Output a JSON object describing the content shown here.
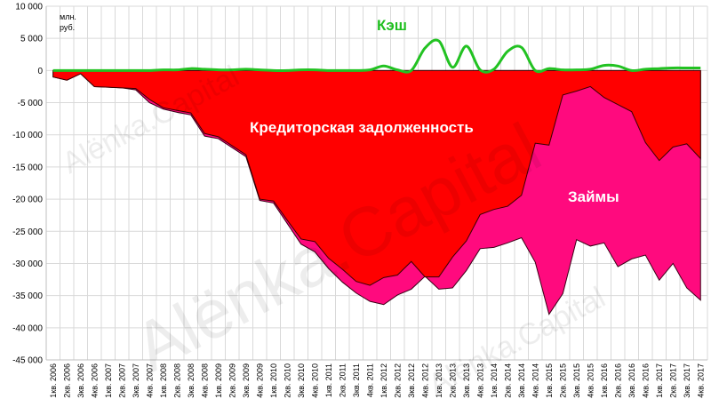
{
  "chart_data": {
    "type": "area",
    "y_unit_label_line1": "млн.",
    "y_unit_label_line2": "руб.",
    "ylim": [
      -45000,
      10000
    ],
    "y_ticks": [
      10000,
      5000,
      0,
      -5000,
      -10000,
      -15000,
      -20000,
      -25000,
      -30000,
      -35000,
      -40000,
      -45000
    ],
    "y_tick_labels": [
      "10 000",
      "5 000",
      "0",
      "-5 000",
      "-10 000",
      "-15 000",
      "-20 000",
      "-25 000",
      "-30 000",
      "-35 000",
      "-40 000",
      "-45 000"
    ],
    "grid": true,
    "categories": [
      "1кв. 2006",
      "2кв. 2006",
      "3кв. 2006",
      "4кв. 2006",
      "1кв. 2007",
      "2кв. 2007",
      "3кв. 2007",
      "4кв. 2007",
      "1кв. 2008",
      "2кв. 2008",
      "3кв. 2008",
      "4кв. 2008",
      "1кв. 2009",
      "2кв. 2009",
      "3кв. 2009",
      "4кв. 2009",
      "1кв. 2010",
      "2кв. 2010",
      "3кв. 2010",
      "4кв. 2010",
      "1кв. 2011",
      "2кв. 2011",
      "3кв. 2011",
      "4кв. 2011",
      "1кв. 2012",
      "2кв. 2012",
      "3кв. 2012",
      "4кв. 2012",
      "1кв. 2013",
      "2кв. 2013",
      "3кв. 2013",
      "4кв. 2013",
      "1кв. 2014",
      "2кв. 2014",
      "3кв. 2014",
      "4кв. 2014",
      "1кв. 2015",
      "2кв. 2015",
      "3кв. 2015",
      "4кв. 2015",
      "1кв. 2016",
      "2кв. 2016",
      "3кв. 2016",
      "4кв. 2016",
      "1кв. 2017",
      "2кв. 2017",
      "3кв. 2017",
      "4кв. 2017"
    ],
    "series": [
      {
        "name": "Кэш",
        "color": "#22c222",
        "values": [
          0,
          0,
          0,
          0,
          0,
          0,
          0,
          0,
          100,
          100,
          300,
          200,
          100,
          100,
          200,
          100,
          0,
          0,
          100,
          100,
          0,
          0,
          0,
          100,
          700,
          100,
          0,
          3500,
          4600,
          500,
          3800,
          100,
          200,
          3000,
          3600,
          0,
          300,
          100,
          100,
          200,
          800,
          700,
          0,
          200,
          300,
          400,
          400,
          400
        ]
      },
      {
        "name": "Кредиторская задолженность",
        "color": "#ff0000",
        "values": [
          -1000,
          -1500,
          -500,
          -2500,
          -2600,
          -2700,
          -2800,
          -4500,
          -5800,
          -6200,
          -6600,
          -9800,
          -10300,
          -11700,
          -13100,
          -20000,
          -20300,
          -23300,
          -26200,
          -26600,
          -29200,
          -30900,
          -32800,
          -33400,
          -32200,
          -31800,
          -29700,
          -32100,
          -32100,
          -29000,
          -26500,
          -22400,
          -21600,
          -21100,
          -19400,
          -11300,
          -11600,
          -3800,
          -3200,
          -2500,
          -4200,
          -5300,
          -6400,
          -11200,
          -14000,
          -11900,
          -11400,
          -13700
        ]
      },
      {
        "name": "Займы",
        "color": "#ff0a7e",
        "values": [
          -1000,
          -1500,
          -500,
          -2500,
          -2600,
          -2700,
          -3000,
          -5000,
          -6000,
          -6500,
          -6900,
          -10200,
          -10600,
          -12000,
          -13400,
          -20200,
          -20600,
          -23800,
          -27000,
          -28200,
          -30800,
          -32900,
          -34600,
          -35900,
          -36400,
          -34900,
          -34000,
          -32000,
          -34000,
          -33800,
          -31100,
          -27700,
          -27500,
          -26800,
          -26000,
          -29800,
          -37900,
          -34700,
          -26300,
          -27300,
          -26800,
          -30500,
          -29300,
          -28700,
          -32600,
          -30000,
          -33800,
          -35700
        ]
      }
    ]
  },
  "annotations": {
    "cash_label": "Кэш",
    "payables_label": "Кредиторская задолженность",
    "loans_label": "Займы"
  },
  "watermarks": [
    "Alёnka.Capital",
    "Alёnka.Capital",
    "Alёnka.Capital"
  ]
}
